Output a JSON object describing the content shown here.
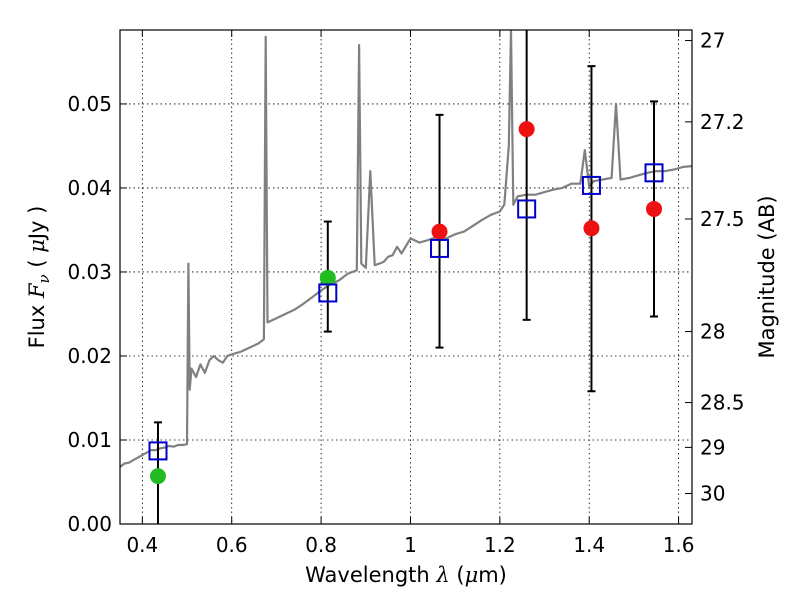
{
  "chart_data": {
    "type": "scatter",
    "xlabel_parts": {
      "pre": "Wavelength  ",
      "sym": "λ",
      "post": " (",
      "mu": "μ",
      "unit": "m)"
    },
    "ylabel_parts": {
      "pre": "Flux  ",
      "F": "F",
      "sub": "ν",
      "post": "  (  ",
      "mu": "μ",
      "unit": "Jy  )"
    },
    "y2label": "Magnitude (AB)",
    "xlim": [
      0.35,
      1.63
    ],
    "ylim": [
      0.0,
      0.0588
    ],
    "grid": true,
    "xticks": [
      {
        "value": 0.4,
        "label": "0.4"
      },
      {
        "value": 0.6,
        "label": "0.6"
      },
      {
        "value": 0.8,
        "label": "0.8"
      },
      {
        "value": 1.0,
        "label": "1"
      },
      {
        "value": 1.2,
        "label": "1.2"
      },
      {
        "value": 1.4,
        "label": "1.4"
      },
      {
        "value": 1.6,
        "label": "1.6"
      }
    ],
    "yticks": [
      {
        "value": 0.0,
        "label": "0.00"
      },
      {
        "value": 0.01,
        "label": "0.01"
      },
      {
        "value": 0.02,
        "label": "0.02"
      },
      {
        "value": 0.03,
        "label": "0.03"
      },
      {
        "value": 0.04,
        "label": "0.04"
      },
      {
        "value": 0.05,
        "label": "0.05"
      }
    ],
    "y2ticks": [
      {
        "mag": 27,
        "label": "27"
      },
      {
        "mag": 27.2,
        "label": "27.2"
      },
      {
        "mag": 27.5,
        "label": "27.5"
      },
      {
        "mag": 28,
        "label": "28"
      },
      {
        "mag": 28.5,
        "label": "28.5"
      },
      {
        "mag": 29,
        "label": "29"
      },
      {
        "mag": 30,
        "label": "30"
      }
    ],
    "series": [
      {
        "kind": "line",
        "color": "#808080",
        "x": [
          0.35,
          0.36,
          0.37,
          0.38,
          0.39,
          0.4,
          0.41,
          0.42,
          0.43,
          0.44,
          0.45,
          0.46,
          0.47,
          0.48,
          0.49,
          0.5,
          0.503,
          0.506,
          0.51,
          0.52,
          0.53,
          0.54,
          0.55,
          0.56,
          0.57,
          0.58,
          0.59,
          0.6,
          0.62,
          0.64,
          0.66,
          0.672,
          0.676,
          0.68,
          0.7,
          0.72,
          0.74,
          0.76,
          0.78,
          0.8,
          0.82,
          0.84,
          0.86,
          0.88,
          0.885,
          0.89,
          0.9,
          0.91,
          0.92,
          0.93,
          0.94,
          0.95,
          0.96,
          0.97,
          0.98,
          1.0,
          1.02,
          1.04,
          1.06,
          1.08,
          1.1,
          1.12,
          1.14,
          1.16,
          1.18,
          1.2,
          1.21,
          1.22,
          1.225,
          1.23,
          1.24,
          1.26,
          1.28,
          1.3,
          1.32,
          1.34,
          1.36,
          1.38,
          1.39,
          1.4,
          1.41,
          1.43,
          1.45,
          1.46,
          1.47,
          1.49,
          1.51,
          1.53,
          1.55,
          1.57,
          1.59,
          1.61,
          1.63
        ],
        "y": [
          0.0068,
          0.0072,
          0.0073,
          0.0076,
          0.0079,
          0.0082,
          0.0085,
          0.0088,
          0.0088,
          0.009,
          0.0091,
          0.0093,
          0.0092,
          0.0094,
          0.0094,
          0.0095,
          0.031,
          0.016,
          0.0185,
          0.0175,
          0.019,
          0.018,
          0.0195,
          0.02,
          0.0195,
          0.0192,
          0.02,
          0.0202,
          0.0205,
          0.021,
          0.0215,
          0.022,
          0.058,
          0.024,
          0.0245,
          0.025,
          0.0255,
          0.0262,
          0.027,
          0.0278,
          0.0285,
          0.029,
          0.0298,
          0.0302,
          0.057,
          0.031,
          0.0305,
          0.042,
          0.0308,
          0.031,
          0.0312,
          0.0318,
          0.032,
          0.033,
          0.0322,
          0.034,
          0.0335,
          0.0338,
          0.0342,
          0.034,
          0.0345,
          0.0348,
          0.0355,
          0.0362,
          0.0368,
          0.0372,
          0.038,
          0.045,
          0.0588,
          0.038,
          0.039,
          0.0392,
          0.0392,
          0.0395,
          0.0398,
          0.04,
          0.0405,
          0.0405,
          0.0445,
          0.0402,
          0.0408,
          0.041,
          0.0412,
          0.05,
          0.041,
          0.0412,
          0.0415,
          0.0418,
          0.042,
          0.042,
          0.0422,
          0.0425,
          0.0426
        ]
      },
      {
        "kind": "open-square",
        "color": "#0000cc",
        "x": [
          0.435,
          0.815,
          1.065,
          1.26,
          1.405,
          1.545
        ],
        "y": [
          0.0087,
          0.0275,
          0.0328,
          0.0375,
          0.0403,
          0.0418
        ]
      },
      {
        "kind": "dot",
        "color": "#22bb22",
        "x": [
          0.435,
          0.815
        ],
        "y": [
          0.0057,
          0.0293
        ]
      },
      {
        "kind": "dot-errorbar",
        "color": "#ee1111",
        "x": [
          1.065,
          1.26,
          1.405,
          1.545
        ],
        "y": [
          0.0348,
          0.047,
          0.0352,
          0.0375
        ],
        "yerr_low": [
          0.021,
          0.0243,
          0.0158,
          0.0247
        ],
        "yerr_high": [
          0.0487,
          0.0588,
          0.0545,
          0.0503
        ]
      },
      {
        "kind": "errorbar",
        "color": "#000000",
        "x": [
          0.435,
          0.815
        ],
        "yerr_low": [
          0.0,
          0.0229
        ],
        "yerr_high": [
          0.0121,
          0.036
        ]
      }
    ]
  }
}
